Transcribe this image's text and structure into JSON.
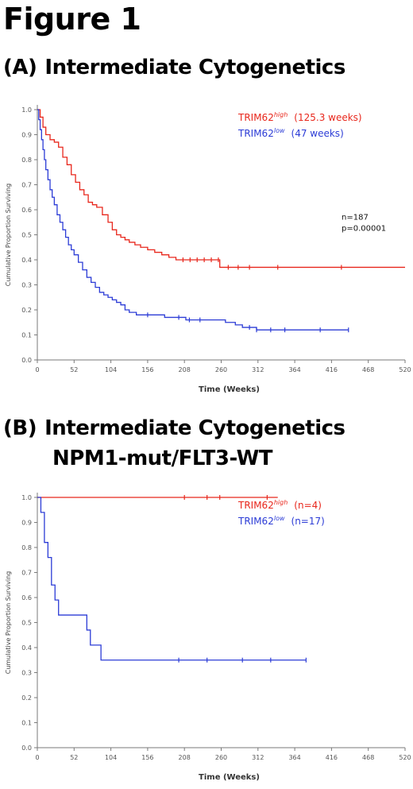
{
  "figure_title": "Figure 1",
  "colors": {
    "high": "#e8271c",
    "low": "#2c3cd6",
    "axis": "#7a7a7a"
  },
  "chart_data": [
    {
      "type": "line",
      "panel_label": "(A)",
      "title": "Intermediate Cytogenetics",
      "xlabel": "Time (Weeks)",
      "ylabel": "Cumulative Proportion Surviving",
      "xlim": [
        0,
        520
      ],
      "ylim": [
        0,
        1.0
      ],
      "x_ticks": [
        0,
        52,
        104,
        156,
        208,
        260,
        312,
        364,
        416,
        468,
        520
      ],
      "y_ticks": [
        0.0,
        0.1,
        0.2,
        0.3,
        0.4,
        0.5,
        0.6,
        0.7,
        0.8,
        0.9,
        1.0
      ],
      "y_tick_labels": [
        "0.0",
        "0.1",
        "0.2",
        "0.3",
        "0.4",
        "0.5",
        "0.6",
        "0.7",
        "0.8",
        "0.9",
        "1.0"
      ],
      "annotation": [
        "n=187",
        "p=0.00001"
      ],
      "legend_position": "top-right",
      "series": [
        {
          "name": "TRIM62",
          "superscript": "high",
          "legend_note": "(125.3 weeks)",
          "color_key": "high",
          "x": [
            0,
            4,
            8,
            12,
            18,
            24,
            30,
            36,
            42,
            48,
            54,
            60,
            66,
            72,
            78,
            84,
            92,
            100,
            106,
            112,
            118,
            124,
            130,
            138,
            146,
            156,
            166,
            176,
            186,
            196,
            206,
            220,
            240,
            258,
            266,
            300,
            320,
            520
          ],
          "y": [
            1.0,
            0.97,
            0.93,
            0.9,
            0.88,
            0.87,
            0.85,
            0.81,
            0.78,
            0.74,
            0.71,
            0.68,
            0.66,
            0.63,
            0.62,
            0.61,
            0.58,
            0.55,
            0.52,
            0.5,
            0.49,
            0.48,
            0.47,
            0.46,
            0.45,
            0.44,
            0.43,
            0.42,
            0.41,
            0.4,
            0.4,
            0.4,
            0.4,
            0.37,
            0.37,
            0.37,
            0.37,
            0.37
          ],
          "censor_x": [
            206,
            216,
            226,
            236,
            246,
            256,
            270,
            284,
            300,
            340,
            430
          ]
        },
        {
          "name": "TRIM62",
          "superscript": "low",
          "legend_note": "(47 weeks)",
          "color_key": "low",
          "x": [
            0,
            2,
            4,
            6,
            8,
            10,
            12,
            15,
            18,
            21,
            24,
            28,
            32,
            36,
            40,
            44,
            48,
            52,
            58,
            64,
            70,
            76,
            82,
            88,
            94,
            100,
            106,
            112,
            118,
            124,
            130,
            140,
            156,
            180,
            210,
            240,
            266,
            280,
            290,
            300,
            310,
            440
          ],
          "y": [
            1.0,
            0.96,
            0.92,
            0.88,
            0.84,
            0.8,
            0.76,
            0.72,
            0.68,
            0.65,
            0.62,
            0.58,
            0.55,
            0.52,
            0.49,
            0.46,
            0.44,
            0.42,
            0.39,
            0.36,
            0.33,
            0.31,
            0.29,
            0.27,
            0.26,
            0.25,
            0.24,
            0.23,
            0.22,
            0.2,
            0.19,
            0.18,
            0.18,
            0.17,
            0.16,
            0.16,
            0.15,
            0.14,
            0.13,
            0.13,
            0.12,
            0.12
          ],
          "censor_x": [
            156,
            200,
            215,
            230,
            300,
            310,
            330,
            350,
            400,
            440
          ]
        }
      ]
    },
    {
      "type": "line",
      "panel_label": "(B)",
      "title": "Intermediate Cytogenetics",
      "title_line2": "NPM1-mut/FLT3-WT",
      "xlabel": "Time (Weeks)",
      "ylabel": "Cumulative Proportion Surviving",
      "xlim": [
        0,
        520
      ],
      "ylim": [
        0,
        1.0
      ],
      "x_ticks": [
        0,
        52,
        104,
        156,
        208,
        260,
        312,
        364,
        416,
        468,
        520
      ],
      "y_ticks": [
        0.0,
        0.1,
        0.2,
        0.3,
        0.4,
        0.5,
        0.6,
        0.7,
        0.8,
        0.9,
        1.0
      ],
      "y_tick_labels": [
        "0.0",
        "0.1",
        "0.2",
        "0.3",
        "0.4",
        "0.5",
        "0.6",
        "0.7",
        "0.8",
        "0.9",
        "1.0"
      ],
      "legend_position": "top-right",
      "series": [
        {
          "name": "TRIM62",
          "superscript": "high",
          "legend_note": "(n=4)",
          "color_key": "high",
          "x": [
            0,
            340
          ],
          "y": [
            1.0,
            1.0
          ],
          "censor_x": [
            208,
            240,
            258,
            325
          ]
        },
        {
          "name": "TRIM62",
          "superscript": "low",
          "legend_note": "(n=17)",
          "color_key": "low",
          "x": [
            0,
            5,
            10,
            15,
            20,
            25,
            30,
            35,
            40,
            70,
            75,
            85,
            90,
            380
          ],
          "y": [
            1.0,
            0.94,
            0.82,
            0.76,
            0.65,
            0.59,
            0.53,
            0.53,
            0.53,
            0.47,
            0.41,
            0.41,
            0.35,
            0.35
          ],
          "censor_x": [
            200,
            240,
            290,
            330,
            380
          ]
        }
      ]
    }
  ]
}
